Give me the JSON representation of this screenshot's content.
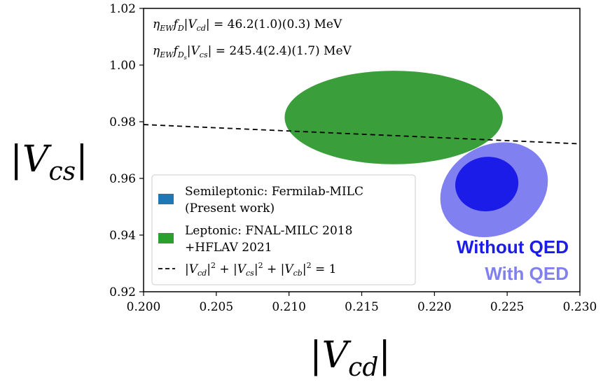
{
  "chart_data": {
    "type": "scatter",
    "xlabel": "|V_cd|",
    "ylabel": "|V_cs|",
    "xlim": [
      0.2,
      0.23
    ],
    "ylim": [
      0.92,
      1.02
    ],
    "xticks": [
      0.2,
      0.205,
      0.21,
      0.215,
      0.22,
      0.225,
      0.23
    ],
    "yticks": [
      0.92,
      0.94,
      0.96,
      0.98,
      1.0,
      1.02
    ],
    "xtick_labels": [
      "0.200",
      "0.205",
      "0.210",
      "0.215",
      "0.220",
      "0.225",
      "0.230"
    ],
    "ytick_labels": [
      "0.92",
      "0.94",
      "0.96",
      "0.98",
      "1.00",
      "1.02"
    ],
    "grid": false,
    "annotations": [
      "η_EW f_D |V_cd| = 46.2(1.0)(0.3) MeV",
      "η_EW f_Ds |V_cs| = 245.4(2.4)(1.7) MeV"
    ],
    "ellipses": [
      {
        "name": "Leptonic: FNAL-MILC 2018 +HFLAV 2021",
        "center": [
          0.2172,
          0.9815
        ],
        "semi_x": 0.0075,
        "semi_y": 0.0165,
        "tilt_deg": 0,
        "color": "#3a9e3a"
      },
      {
        "name": "Semileptonic: Fermilab-MILC (Present work) — With QED",
        "center": [
          0.2241,
          0.956
        ],
        "semi_x": 0.0049,
        "semi_y": 0.0131,
        "tilt_deg": -28,
        "color": "#8080f0"
      },
      {
        "name": "Semileptonic: Fermilab-MILC (Present work) — Without QED",
        "center": [
          0.2236,
          0.958
        ],
        "semi_x": 0.0027,
        "semi_y": 0.0077,
        "tilt_deg": -8,
        "color": "#1c1ce8"
      }
    ],
    "unitarity_line": {
      "name": "|V_cd|^2 + |V_cs|^2 + |V_cb|^2 = 1",
      "x": [
        0.2,
        0.23
      ],
      "y": [
        0.979,
        0.9722
      ],
      "style": "dashed"
    },
    "legend": {
      "placement": "lower-left",
      "entries": [
        {
          "label_line1": "Semileptonic: Fermilab-MILC",
          "label_line2": "(Present work)",
          "color": "#1f77b4",
          "kind": "patch"
        },
        {
          "label_line1": "Leptonic: FNAL-MILC 2018",
          "label_line2": "+HFLAV 2021",
          "color": "#2ca02c",
          "kind": "patch"
        },
        {
          "label_line1": "|V_cd|^2 + |V_cs|^2 + |V_cb|^2 = 1",
          "label_line2": "",
          "color": "#000000",
          "kind": "dashed"
        }
      ]
    },
    "text_labels": [
      {
        "text": "Without QED",
        "color": "#1c1ce8"
      },
      {
        "text": "With QED",
        "color": "#8080f0"
      }
    ]
  }
}
